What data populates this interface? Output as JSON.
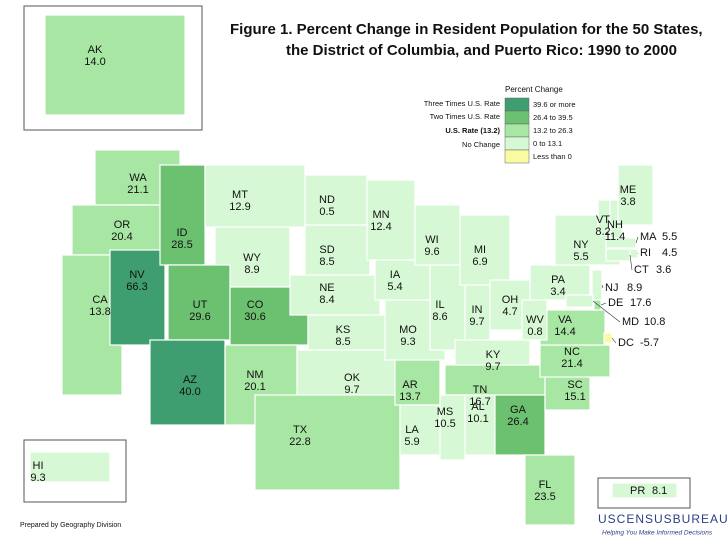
{
  "title": {
    "line1": "Figure 1.  Percent Change in Resident Population for the 50 States,",
    "line2": "the District of Columbia, and Puerto Rico: 1990 to 2000"
  },
  "legend": {
    "title": "Percent Change",
    "tiers": [
      "Three Times U.S. Rate",
      "Two Times U.S. Rate",
      "U.S. Rate (13.2)",
      "No Change"
    ],
    "classes": [
      {
        "label": "39.6 or more",
        "color": "#3f9e6f"
      },
      {
        "label": "26.4 to 39.5",
        "color": "#6cc170"
      },
      {
        "label": "13.2 to 26.3",
        "color": "#a8e6a4"
      },
      {
        "label": "0 to 13.1",
        "color": "#d7f8d5"
      },
      {
        "label": "Less than 0",
        "color": "#fafaa0"
      }
    ]
  },
  "states": [
    {
      "abbr": "AK",
      "value": "14.0",
      "color": "#a8e6a4"
    },
    {
      "abbr": "HI",
      "value": "9.3",
      "color": "#d7f8d5"
    },
    {
      "abbr": "PR",
      "value": "8.1",
      "color": "#d7f8d5"
    },
    {
      "abbr": "WA",
      "value": "21.1",
      "color": "#a8e6a4"
    },
    {
      "abbr": "OR",
      "value": "20.4",
      "color": "#a8e6a4"
    },
    {
      "abbr": "CA",
      "value": "13.8",
      "color": "#a8e6a4"
    },
    {
      "abbr": "NV",
      "value": "66.3",
      "color": "#3f9e6f"
    },
    {
      "abbr": "ID",
      "value": "28.5",
      "color": "#6cc170"
    },
    {
      "abbr": "MT",
      "value": "12.9",
      "color": "#d7f8d5"
    },
    {
      "abbr": "WY",
      "value": "8.9",
      "color": "#d7f8d5"
    },
    {
      "abbr": "UT",
      "value": "29.6",
      "color": "#6cc170"
    },
    {
      "abbr": "CO",
      "value": "30.6",
      "color": "#6cc170"
    },
    {
      "abbr": "AZ",
      "value": "40.0",
      "color": "#3f9e6f"
    },
    {
      "abbr": "NM",
      "value": "20.1",
      "color": "#a8e6a4"
    },
    {
      "abbr": "ND",
      "value": "0.5",
      "color": "#d7f8d5"
    },
    {
      "abbr": "SD",
      "value": "8.5",
      "color": "#d7f8d5"
    },
    {
      "abbr": "NE",
      "value": "8.4",
      "color": "#d7f8d5"
    },
    {
      "abbr": "KS",
      "value": "8.5",
      "color": "#d7f8d5"
    },
    {
      "abbr": "OK",
      "value": "9.7",
      "color": "#d7f8d5"
    },
    {
      "abbr": "TX",
      "value": "22.8",
      "color": "#a8e6a4"
    },
    {
      "abbr": "MN",
      "value": "12.4",
      "color": "#d7f8d5"
    },
    {
      "abbr": "IA",
      "value": "5.4",
      "color": "#d7f8d5"
    },
    {
      "abbr": "MO",
      "value": "9.3",
      "color": "#d7f8d5"
    },
    {
      "abbr": "AR",
      "value": "13.7",
      "color": "#a8e6a4"
    },
    {
      "abbr": "LA",
      "value": "5.9",
      "color": "#d7f8d5"
    },
    {
      "abbr": "WI",
      "value": "9.6",
      "color": "#d7f8d5"
    },
    {
      "abbr": "IL",
      "value": "8.6",
      "color": "#d7f8d5"
    },
    {
      "abbr": "MI",
      "value": "6.9",
      "color": "#d7f8d5"
    },
    {
      "abbr": "IN",
      "value": "9.7",
      "color": "#d7f8d5"
    },
    {
      "abbr": "OH",
      "value": "4.7",
      "color": "#d7f8d5"
    },
    {
      "abbr": "KY",
      "value": "9.7",
      "color": "#d7f8d5"
    },
    {
      "abbr": "TN",
      "value": "16.7",
      "color": "#a8e6a4"
    },
    {
      "abbr": "MS",
      "value": "10.5",
      "color": "#d7f8d5"
    },
    {
      "abbr": "AL",
      "value": "10.1",
      "color": "#d7f8d5"
    },
    {
      "abbr": "GA",
      "value": "26.4",
      "color": "#6cc170"
    },
    {
      "abbr": "FL",
      "value": "23.5",
      "color": "#a8e6a4"
    },
    {
      "abbr": "SC",
      "value": "15.1",
      "color": "#a8e6a4"
    },
    {
      "abbr": "NC",
      "value": "21.4",
      "color": "#a8e6a4"
    },
    {
      "abbr": "VA",
      "value": "14.4",
      "color": "#a8e6a4"
    },
    {
      "abbr": "WV",
      "value": "0.8",
      "color": "#d7f8d5"
    },
    {
      "abbr": "PA",
      "value": "3.4",
      "color": "#d7f8d5"
    },
    {
      "abbr": "NY",
      "value": "5.5",
      "color": "#d7f8d5"
    },
    {
      "abbr": "VT",
      "value": "8.2",
      "color": "#d7f8d5"
    },
    {
      "abbr": "NH",
      "value": "11.4",
      "color": "#d7f8d5"
    },
    {
      "abbr": "ME",
      "value": "3.8",
      "color": "#d7f8d5"
    },
    {
      "abbr": "MA",
      "value": "5.5",
      "color": "#d7f8d5"
    },
    {
      "abbr": "RI",
      "value": "4.5",
      "color": "#d7f8d5"
    },
    {
      "abbr": "CT",
      "value": "3.6",
      "color": "#d7f8d5"
    },
    {
      "abbr": "NJ",
      "value": "8.9",
      "color": "#d7f8d5"
    },
    {
      "abbr": "DE",
      "value": "17.6",
      "color": "#a8e6a4"
    },
    {
      "abbr": "MD",
      "value": "10.8",
      "color": "#d7f8d5"
    },
    {
      "abbr": "DC",
      "value": "-5.7",
      "color": "#fafaa0"
    }
  ],
  "credit": "Prepared by Geography Division",
  "logo": {
    "name": "USCENSUSBUREAU",
    "tagline": "Helping You Make Informed Decisions"
  }
}
